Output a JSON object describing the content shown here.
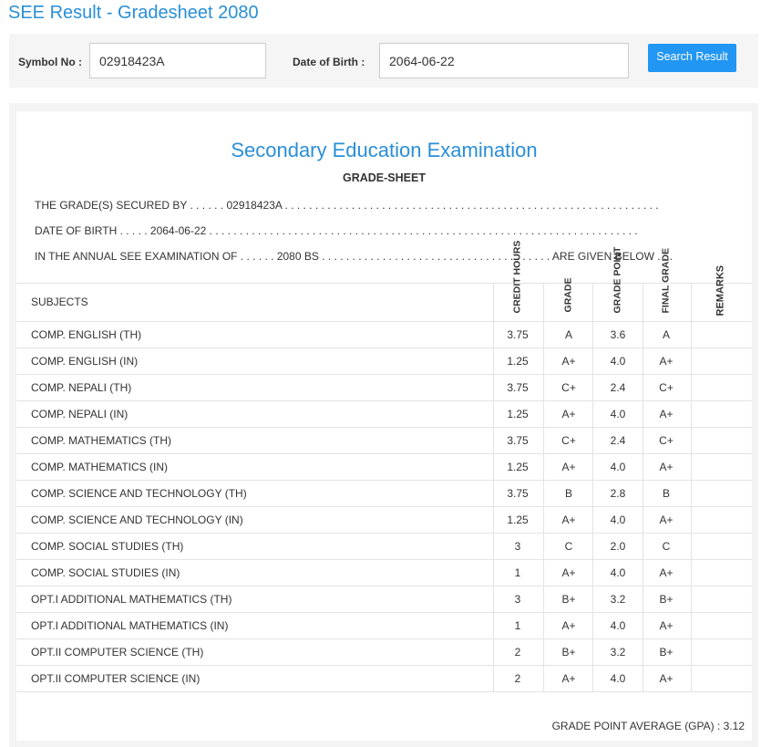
{
  "header": {
    "title": "SEE Result - Gradesheet 2080"
  },
  "search_form": {
    "symbol_label": "Symbol No :",
    "symbol_value": "02918423A",
    "dob_label": "Date of Birth :",
    "dob_value": "2064-06-22",
    "button": "Search Result"
  },
  "gradesheet": {
    "heading": "Secondary Education Examination",
    "subheading": "GRADE-SHEET",
    "lines": [
      "THE GRADE(S) SECURED BY . . . . . . 02918423A . . . . . . . . . . . . . . . . . . . . . . . . . . . . . . . . . . . . . . . . . . . . . . . . . . . . . . . . . . . . . .",
      "DATE OF BIRTH . . . . . 2064-06-22 . . . . . . . . . . . . . . . . . . . . . . . . . . . . . . . . . . . . . . . . . . . . . . . . . . . . . . . . . . . . . . . . . . . . . . .",
      "IN THE ANNUAL SEE EXAMINATION OF . . . . . . 2080 BS . . . . . . . . . . . . . . . . . . . . . . . . . . . . . . . . . . . . . . ARE GIVEN BELOW . . ."
    ],
    "table": {
      "columns": [
        "SUBJECTS",
        "CREDIT HOURS",
        "GRADE",
        "GRADE POINT",
        "FINAL GRADE",
        "REMARKS"
      ],
      "rows": [
        [
          "COMP. ENGLISH (TH)",
          "3.75",
          "A",
          "3.6",
          "A"
        ],
        [
          "COMP. ENGLISH (IN)",
          "1.25",
          "A+",
          "4.0",
          "A+"
        ],
        [
          "COMP. NEPALI (TH)",
          "3.75",
          "C+",
          "2.4",
          "C+"
        ],
        [
          "COMP. NEPALI (IN)",
          "1.25",
          "A+",
          "4.0",
          "A+"
        ],
        [
          "COMP. MATHEMATICS (TH)",
          "3.75",
          "C+",
          "2.4",
          "C+"
        ],
        [
          "COMP. MATHEMATICS (IN)",
          "1.25",
          "A+",
          "4.0",
          "A+"
        ],
        [
          "COMP. SCIENCE AND TECHNOLOGY (TH)",
          "3.75",
          "B",
          "2.8",
          "B"
        ],
        [
          "COMP. SCIENCE AND TECHNOLOGY (IN)",
          "1.25",
          "A+",
          "4.0",
          "A+"
        ],
        [
          "COMP. SOCIAL STUDIES (TH)",
          "3",
          "C",
          "2.0",
          "C"
        ],
        [
          "COMP. SOCIAL STUDIES (IN)",
          "1",
          "A+",
          "4.0",
          "A+"
        ],
        [
          "OPT.I ADDITIONAL MATHEMATICS (TH)",
          "3",
          "B+",
          "3.2",
          "B+"
        ],
        [
          "OPT.I ADDITIONAL MATHEMATICS (IN)",
          "1",
          "A+",
          "4.0",
          "A+"
        ],
        [
          "OPT.II COMPUTER SCIENCE (TH)",
          "2",
          "B+",
          "3.2",
          "B+"
        ],
        [
          "OPT.II COMPUTER SCIENCE (IN)",
          "2",
          "A+",
          "4.0",
          "A+"
        ]
      ]
    },
    "gpa": "GRADE POINT AVERAGE (GPA) : 3.12"
  }
}
